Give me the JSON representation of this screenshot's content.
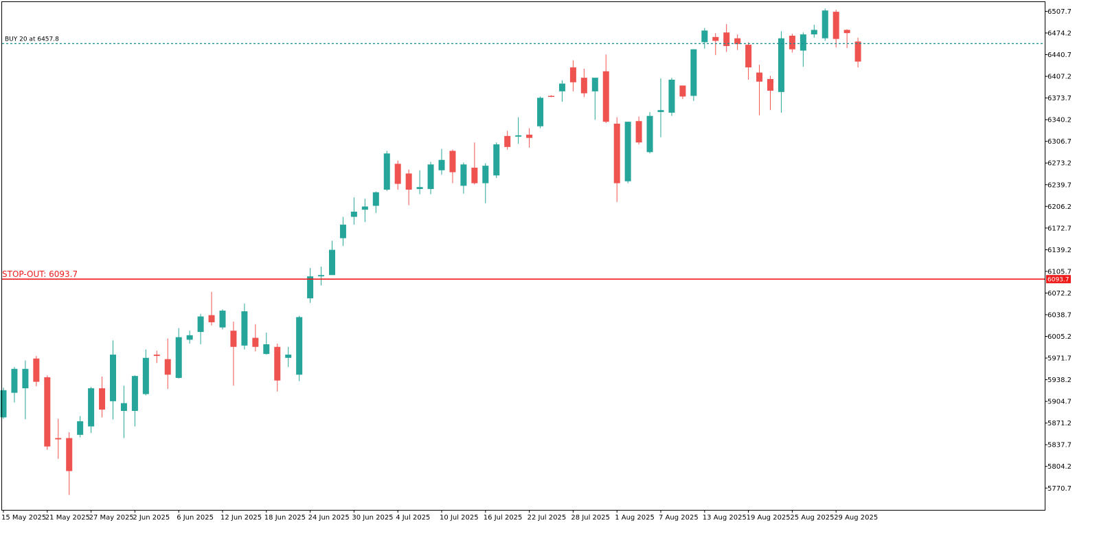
{
  "chart_data": {
    "type": "candlestick",
    "colors": {
      "up": "#26a69a",
      "down": "#ef5350",
      "order_line": "#1b8f8f",
      "stop_line": "#ef1b1b",
      "axis": "#000000",
      "background": "#ffffff"
    },
    "ylim": [
      5737.0,
      6522.0
    ],
    "y_ticks": [
      "6507.7",
      "6474.2",
      "6440.7",
      "6407.2",
      "6373.7",
      "6340.2",
      "6306.7",
      "6273.2",
      "6239.7",
      "6206.2",
      "6172.7",
      "6139.2",
      "6105.7",
      "6072.2",
      "6038.7",
      "6005.2",
      "5971.7",
      "5938.2",
      "5904.7",
      "5871.2",
      "5837.7",
      "5804.2",
      "5770.7"
    ],
    "x_labels": [
      {
        "label": "15 May 2025",
        "index": 0
      },
      {
        "label": "21 May 2025",
        "index": 4
      },
      {
        "label": "27 May 2025",
        "index": 8
      },
      {
        "label": "2 Jun 2025",
        "index": 12
      },
      {
        "label": "6 Jun 2025",
        "index": 16
      },
      {
        "label": "12 Jun 2025",
        "index": 20
      },
      {
        "label": "18 Jun 2025",
        "index": 24
      },
      {
        "label": "24 Jun 2025",
        "index": 28
      },
      {
        "label": "30 Jun 2025",
        "index": 32
      },
      {
        "label": "4 Jul 2025",
        "index": 36
      },
      {
        "label": "10 Jul 2025",
        "index": 40
      },
      {
        "label": "16 Jul 2025",
        "index": 44
      },
      {
        "label": "22 Jul 2025",
        "index": 48
      },
      {
        "label": "28 Jul 2025",
        "index": 52
      },
      {
        "label": "1 Aug 2025",
        "index": 56
      },
      {
        "label": "7 Aug 2025",
        "index": 60
      },
      {
        "label": "13 Aug 2025",
        "index": 64
      },
      {
        "label": "19 Aug 2025",
        "index": 68
      },
      {
        "label": "25 Aug 2025",
        "index": 72
      },
      {
        "label": "29 Aug 2025",
        "index": 76
      }
    ],
    "candles": [
      {
        "o": 5880,
        "h": 5926,
        "l": 5878,
        "c": 5922
      },
      {
        "o": 5918,
        "h": 5958,
        "l": 5903,
        "c": 5955
      },
      {
        "o": 5925,
        "h": 5968,
        "l": 5877,
        "c": 5955
      },
      {
        "o": 5971,
        "h": 5975,
        "l": 5928,
        "c": 5935
      },
      {
        "o": 5942,
        "h": 5945,
        "l": 5830,
        "c": 5835
      },
      {
        "o": 5848,
        "h": 5878,
        "l": 5816,
        "c": 5846
      },
      {
        "o": 5848,
        "h": 5857,
        "l": 5760,
        "c": 5797
      },
      {
        "o": 5853,
        "h": 5882,
        "l": 5849,
        "c": 5874
      },
      {
        "o": 5866,
        "h": 5927,
        "l": 5856,
        "c": 5925
      },
      {
        "o": 5925,
        "h": 5943,
        "l": 5880,
        "c": 5892
      },
      {
        "o": 5905,
        "h": 5999,
        "l": 5877,
        "c": 5977
      },
      {
        "o": 5890,
        "h": 5929,
        "l": 5848,
        "c": 5902
      },
      {
        "o": 5890,
        "h": 5945,
        "l": 5866,
        "c": 5944
      },
      {
        "o": 5916,
        "h": 5985,
        "l": 5914,
        "c": 5972
      },
      {
        "o": 5977,
        "h": 5983,
        "l": 5964,
        "c": 5975
      },
      {
        "o": 5970,
        "h": 6002,
        "l": 5924,
        "c": 5946
      },
      {
        "o": 5941,
        "h": 6018,
        "l": 5940,
        "c": 6004
      },
      {
        "o": 6000,
        "h": 6014,
        "l": 5994,
        "c": 6007
      },
      {
        "o": 6012,
        "h": 6040,
        "l": 5993,
        "c": 6036
      },
      {
        "o": 6038,
        "h": 6074,
        "l": 6022,
        "c": 6027
      },
      {
        "o": 6019,
        "h": 6047,
        "l": 6016,
        "c": 6045
      },
      {
        "o": 6014,
        "h": 6028,
        "l": 5929,
        "c": 5989
      },
      {
        "o": 5991,
        "h": 6056,
        "l": 5985,
        "c": 6044
      },
      {
        "o": 6003,
        "h": 6024,
        "l": 5982,
        "c": 5989
      },
      {
        "o": 5978,
        "h": 6011,
        "l": 5977,
        "c": 5993
      },
      {
        "o": 5989,
        "h": 5994,
        "l": 5920,
        "c": 5937
      },
      {
        "o": 5972,
        "h": 5989,
        "l": 5958,
        "c": 5977
      },
      {
        "o": 5946,
        "h": 6037,
        "l": 5936,
        "c": 6035
      },
      {
        "o": 6064,
        "h": 6111,
        "l": 6057,
        "c": 6098
      },
      {
        "o": 6098,
        "h": 6113,
        "l": 6084,
        "c": 6100
      },
      {
        "o": 6100,
        "h": 6153,
        "l": 6100,
        "c": 6139
      },
      {
        "o": 6157,
        "h": 6190,
        "l": 6145,
        "c": 6178
      },
      {
        "o": 6190,
        "h": 6220,
        "l": 6178,
        "c": 6198
      },
      {
        "o": 6201,
        "h": 6218,
        "l": 6182,
        "c": 6206
      },
      {
        "o": 6207,
        "h": 6229,
        "l": 6196,
        "c": 6228
      },
      {
        "o": 6232,
        "h": 6292,
        "l": 6230,
        "c": 6288
      },
      {
        "o": 6272,
        "h": 6277,
        "l": 6232,
        "c": 6241
      },
      {
        "o": 6257,
        "h": 6263,
        "l": 6208,
        "c": 6232
      },
      {
        "o": 6233,
        "h": 6262,
        "l": 6225,
        "c": 6236
      },
      {
        "o": 6233,
        "h": 6275,
        "l": 6225,
        "c": 6271
      },
      {
        "o": 6262,
        "h": 6295,
        "l": 6255,
        "c": 6278
      },
      {
        "o": 6292,
        "h": 6294,
        "l": 6242,
        "c": 6259
      },
      {
        "o": 6238,
        "h": 6274,
        "l": 6226,
        "c": 6271
      },
      {
        "o": 6266,
        "h": 6305,
        "l": 6240,
        "c": 6242
      },
      {
        "o": 6242,
        "h": 6273,
        "l": 6211,
        "c": 6269
      },
      {
        "o": 6254,
        "h": 6305,
        "l": 6250,
        "c": 6302
      },
      {
        "o": 6315,
        "h": 6323,
        "l": 6294,
        "c": 6298
      },
      {
        "o": 6314,
        "h": 6344,
        "l": 6303,
        "c": 6316
      },
      {
        "o": 6317,
        "h": 6327,
        "l": 6297,
        "c": 6312
      },
      {
        "o": 6330,
        "h": 6376,
        "l": 6327,
        "c": 6374
      },
      {
        "o": 6377,
        "h": 6378,
        "l": 6375,
        "c": 6376
      },
      {
        "o": 6384,
        "h": 6401,
        "l": 6368,
        "c": 6396
      },
      {
        "o": 6421,
        "h": 6432,
        "l": 6384,
        "c": 6398
      },
      {
        "o": 6405,
        "h": 6419,
        "l": 6375,
        "c": 6381
      },
      {
        "o": 6384,
        "h": 6405,
        "l": 6340,
        "c": 6405
      },
      {
        "o": 6415,
        "h": 6441,
        "l": 6335,
        "c": 6337
      },
      {
        "o": 6334,
        "h": 6344,
        "l": 6213,
        "c": 6242
      },
      {
        "o": 6245,
        "h": 6337,
        "l": 6242,
        "c": 6337
      },
      {
        "o": 6338,
        "h": 6345,
        "l": 6302,
        "c": 6305
      },
      {
        "o": 6290,
        "h": 6352,
        "l": 6288,
        "c": 6346
      },
      {
        "o": 6352,
        "h": 6404,
        "l": 6313,
        "c": 6355
      },
      {
        "o": 6351,
        "h": 6405,
        "l": 6346,
        "c": 6402
      },
      {
        "o": 6393,
        "h": 6392,
        "l": 6372,
        "c": 6376
      },
      {
        "o": 6377,
        "h": 6449,
        "l": 6369,
        "c": 6449
      },
      {
        "o": 6460,
        "h": 6482,
        "l": 6450,
        "c": 6478
      },
      {
        "o": 6468,
        "h": 6474,
        "l": 6440,
        "c": 6462
      },
      {
        "o": 6475,
        "h": 6488,
        "l": 6445,
        "c": 6454
      },
      {
        "o": 6466,
        "h": 6472,
        "l": 6448,
        "c": 6457
      },
      {
        "o": 6456,
        "h": 6460,
        "l": 6402,
        "c": 6421
      },
      {
        "o": 6413,
        "h": 6425,
        "l": 6347,
        "c": 6399
      },
      {
        "o": 6403,
        "h": 6408,
        "l": 6355,
        "c": 6385
      },
      {
        "o": 6383,
        "h": 6477,
        "l": 6351,
        "c": 6466
      },
      {
        "o": 6470,
        "h": 6473,
        "l": 6444,
        "c": 6449
      },
      {
        "o": 6447,
        "h": 6475,
        "l": 6422,
        "c": 6472
      },
      {
        "o": 6472,
        "h": 6487,
        "l": 6467,
        "c": 6479
      },
      {
        "o": 6466,
        "h": 6512,
        "l": 6462,
        "c": 6509
      },
      {
        "o": 6507,
        "h": 6510,
        "l": 6452,
        "c": 6465
      },
      {
        "o": 6479,
        "h": 6480,
        "l": 6451,
        "c": 6474
      },
      {
        "o": 6461,
        "h": 6467,
        "l": 6421,
        "c": 6430
      }
    ],
    "order_line": {
      "label": "BUY 20 at 6457.8",
      "price": 6457.8
    },
    "stop_line": {
      "label": "STOP-OUT: 6093.7",
      "price": 6093.7,
      "tag": "6093.7"
    }
  }
}
